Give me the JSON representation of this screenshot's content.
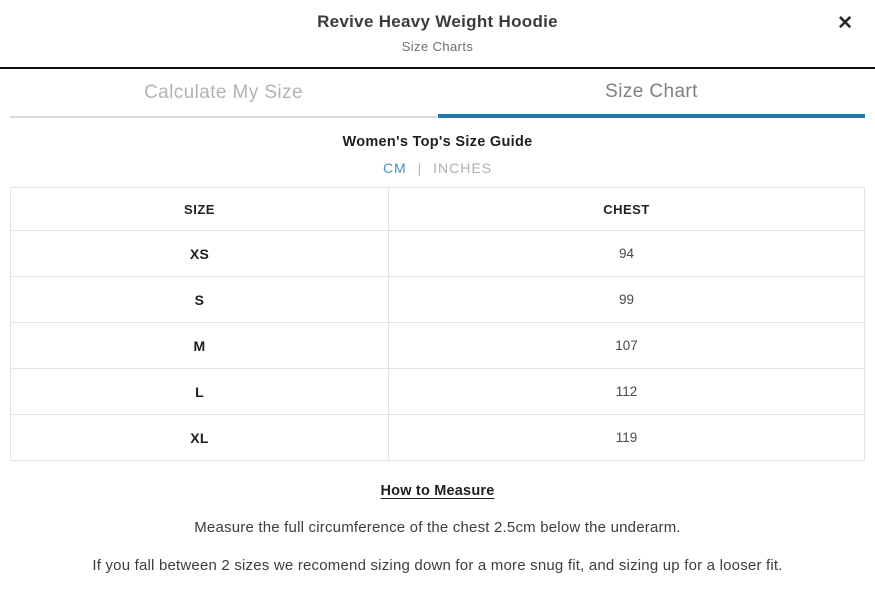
{
  "header": {
    "title": "Revive Heavy Weight Hoodie",
    "subtitle": "Size Charts",
    "close_icon": "✕"
  },
  "tabs": [
    {
      "label": "Calculate My Size",
      "active": false
    },
    {
      "label": "Size Chart",
      "active": true
    }
  ],
  "guide": {
    "title": "Women's Top's Size Guide",
    "units": {
      "cm": "CM",
      "separator": "|",
      "inches": "INCHES",
      "selected": "CM"
    }
  },
  "table": {
    "columns": [
      "SIZE",
      "CHEST"
    ],
    "rows": [
      {
        "size": "XS",
        "chest": "94"
      },
      {
        "size": "S",
        "chest": "99"
      },
      {
        "size": "M",
        "chest": "107"
      },
      {
        "size": "L",
        "chest": "112"
      },
      {
        "size": "XL",
        "chest": "119"
      }
    ]
  },
  "footer": {
    "how_to_measure": "How to Measure",
    "line1": "Measure the full circumference of the chest 2.5cm below the underarm.",
    "line2": "If you fall between 2 sizes we recomend sizing down for a more snug fit, and sizing up for a looser fit."
  },
  "colors": {
    "accent_blue": "#2179a9",
    "unit_link_blue": "#4a90be",
    "header_border_black": "#0c0c0c",
    "table_border_gray": "#e3e3e3"
  }
}
